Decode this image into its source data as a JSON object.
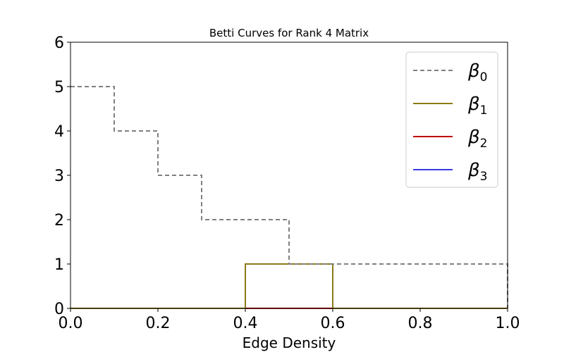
{
  "chart_data": {
    "type": "line",
    "step": "post",
    "title": "Betti Curves for Rank 4 Matrix",
    "xlabel": "Edge Density",
    "ylabel": "",
    "xlim": [
      0.0,
      1.0
    ],
    "ylim": [
      0,
      6
    ],
    "xticks": [
      "0.0",
      "0.2",
      "0.4",
      "0.6",
      "0.8",
      "1.0"
    ],
    "yticks": [
      "0",
      "1",
      "2",
      "3",
      "4",
      "5",
      "6"
    ],
    "grid": false,
    "legend_position": "top-right",
    "series": [
      {
        "name": "β0",
        "symbol": "β",
        "sub": "0",
        "color": "#808080",
        "dash": "dashed",
        "x": [
          0.0,
          0.1,
          0.2,
          0.3,
          0.4,
          0.5,
          0.6,
          0.7,
          0.8,
          0.9,
          1.0
        ],
        "y": [
          5,
          4,
          3,
          2,
          2,
          1,
          1,
          1,
          1,
          1,
          0
        ]
      },
      {
        "name": "β1",
        "symbol": "β",
        "sub": "1",
        "color": "#8c7a14",
        "dash": "solid",
        "x": [
          0.0,
          0.1,
          0.2,
          0.3,
          0.4,
          0.5,
          0.6,
          0.7,
          0.8,
          0.9,
          1.0
        ],
        "y": [
          0,
          0,
          0,
          0,
          1,
          1,
          0,
          0,
          0,
          0,
          0
        ]
      },
      {
        "name": "β2",
        "symbol": "β",
        "sub": "2",
        "color": "#c00000",
        "dash": "solid",
        "x": [
          0.0,
          0.1,
          0.2,
          0.3,
          0.4,
          0.5,
          0.6,
          0.7,
          0.8,
          0.9,
          1.0
        ],
        "y": [
          0,
          0,
          0,
          0,
          0,
          0,
          0,
          0,
          0,
          0,
          0
        ]
      },
      {
        "name": "β3",
        "symbol": "β",
        "sub": "3",
        "color": "#3a3ae8",
        "dash": "solid",
        "x": [
          0.0,
          0.1,
          0.2,
          0.3,
          0.4,
          0.5,
          0.6,
          0.7,
          0.8,
          0.9,
          1.0
        ],
        "y": [
          0,
          0,
          0,
          0,
          0,
          0,
          0,
          0,
          0,
          0,
          0
        ]
      }
    ]
  }
}
